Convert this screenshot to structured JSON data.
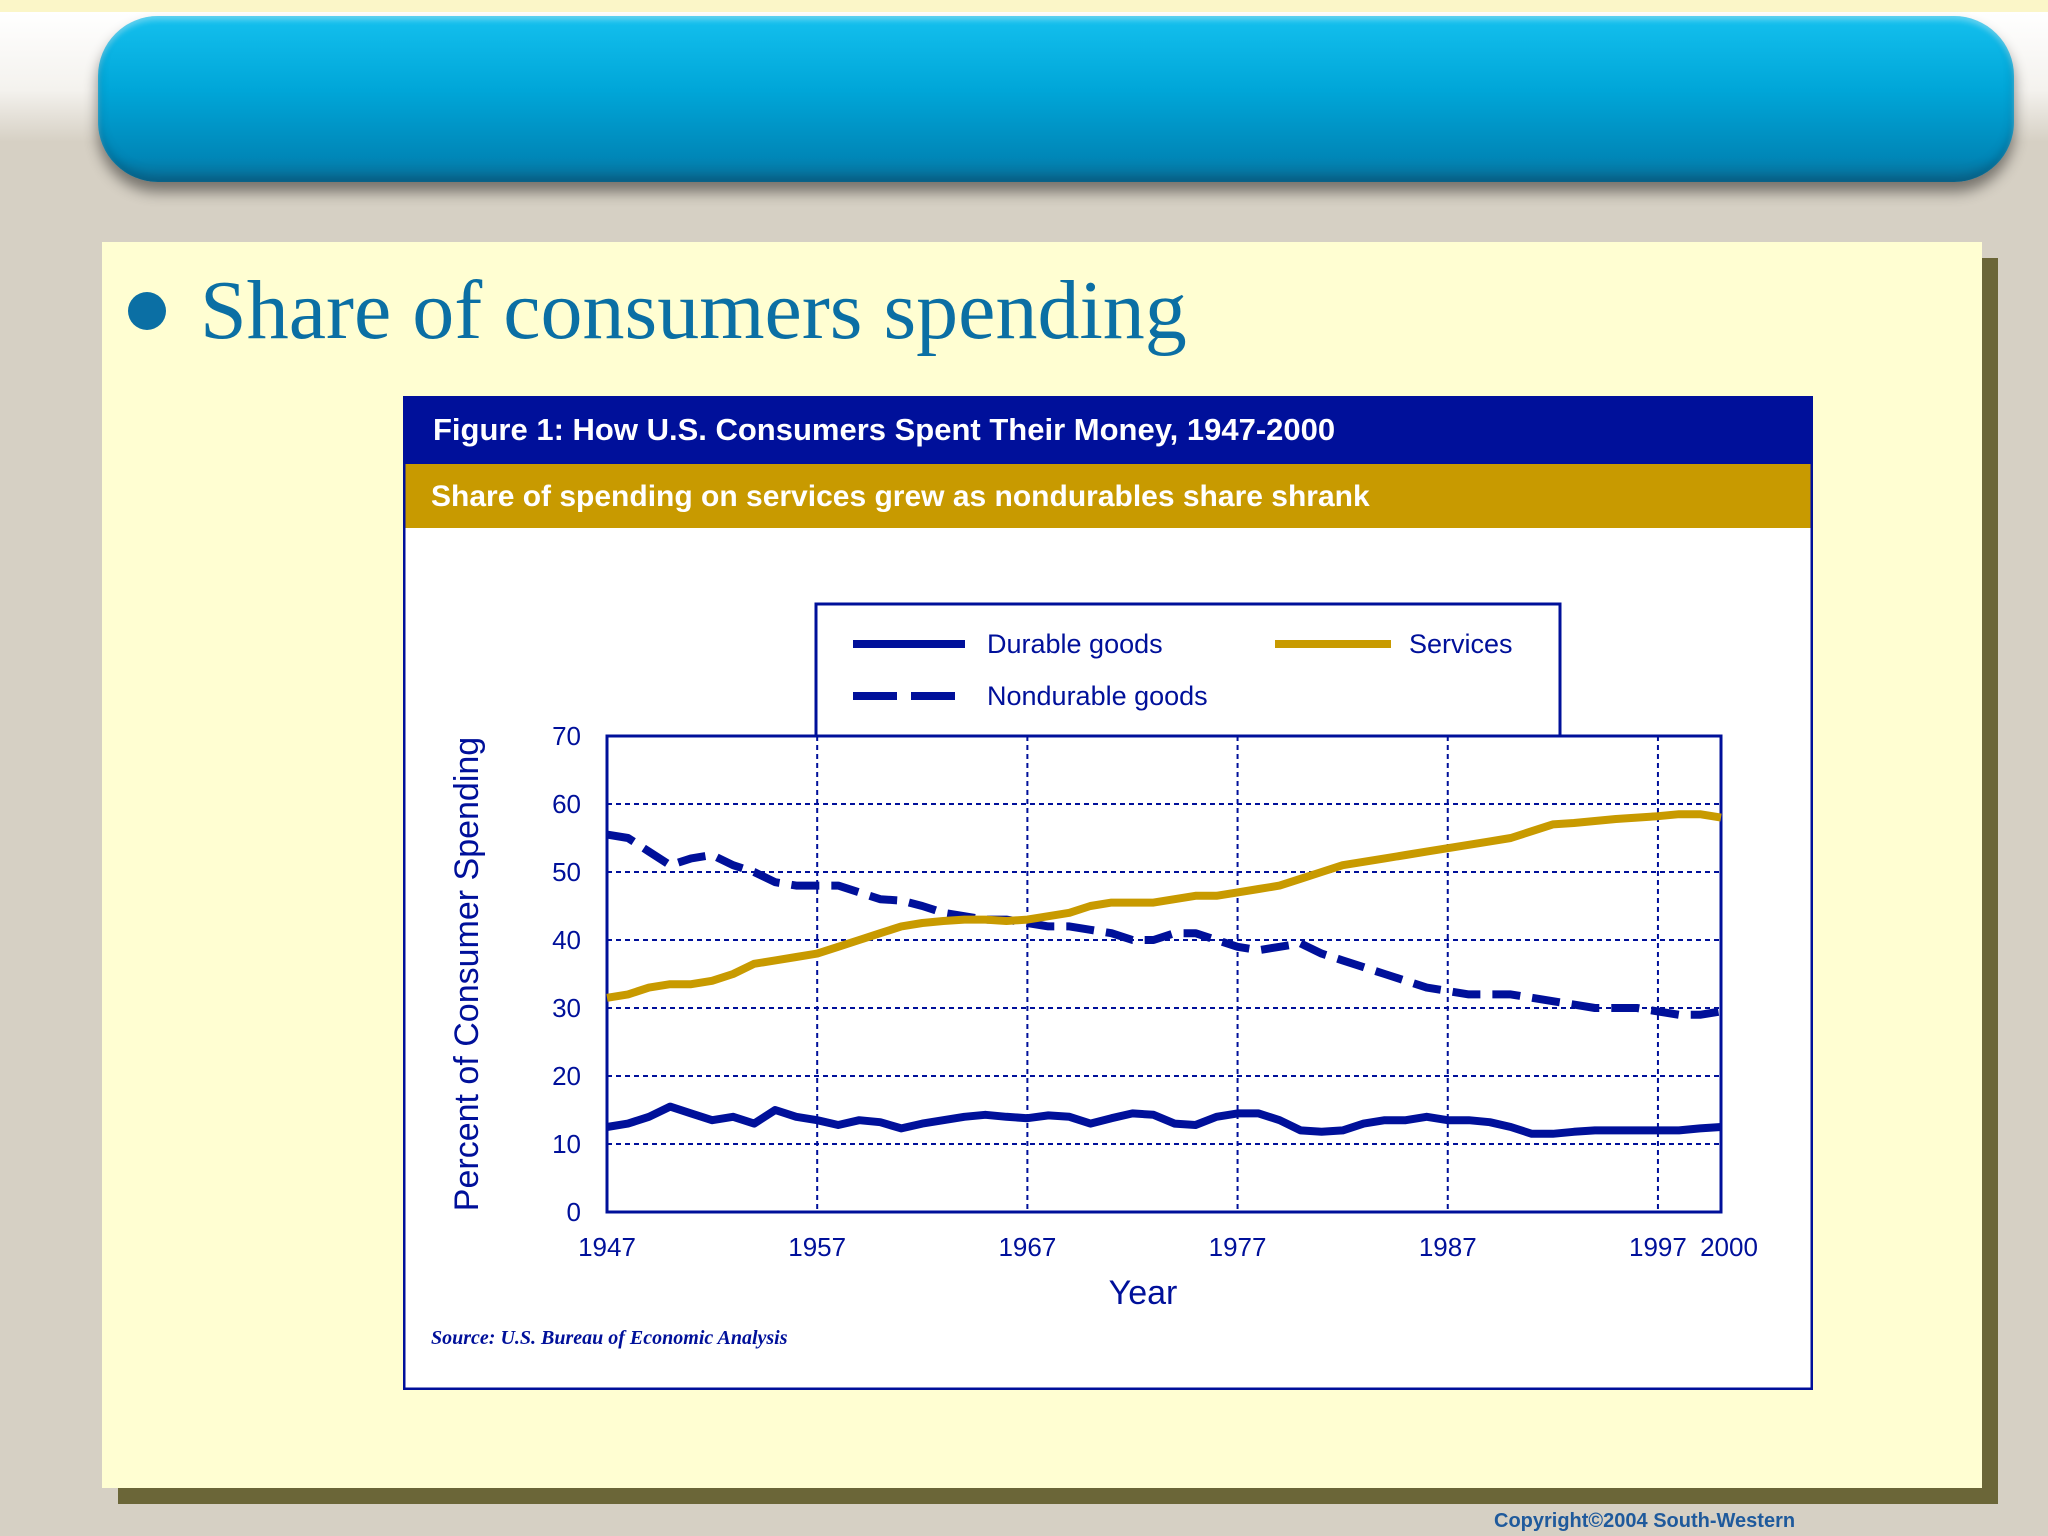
{
  "slide": {
    "title": "Share of consumers spending",
    "copyright": "Copyright©2004  South-Western"
  },
  "figure": {
    "heading": "Figure 1: How U.S. Consumers Spent Their Money, 1947-2000",
    "subheading": "Share of spending on services grew as nondurables share shrank",
    "source": "Source: U.S. Bureau of Economic Analysis"
  },
  "colors": {
    "navy": "#00109a",
    "gold": "#c89a00",
    "slide_title": "#0b6fa4"
  },
  "chart_data": {
    "type": "line",
    "xlabel": "Year",
    "ylabel": "Percent of Consumer Spending",
    "xlim": [
      1947,
      2000
    ],
    "ylim": [
      0,
      70
    ],
    "x_ticks": [
      1947,
      1957,
      1967,
      1977,
      1987,
      1997,
      2000
    ],
    "y_ticks": [
      0,
      10,
      20,
      30,
      40,
      50,
      60,
      70
    ],
    "grid": true,
    "legend_position": "top",
    "series": [
      {
        "name": "Durable goods",
        "style": "solid",
        "color": "#00109a",
        "points": [
          [
            1947,
            12.5
          ],
          [
            1948,
            13
          ],
          [
            1949,
            14
          ],
          [
            1950,
            15.5
          ],
          [
            1951,
            14.5
          ],
          [
            1952,
            13.5
          ],
          [
            1953,
            14
          ],
          [
            1954,
            13
          ],
          [
            1955,
            15
          ],
          [
            1956,
            14
          ],
          [
            1957,
            13.5
          ],
          [
            1958,
            12.8
          ],
          [
            1959,
            13.5
          ],
          [
            1960,
            13.2
          ],
          [
            1961,
            12.3
          ],
          [
            1962,
            13
          ],
          [
            1963,
            13.5
          ],
          [
            1964,
            14
          ],
          [
            1965,
            14.3
          ],
          [
            1966,
            14
          ],
          [
            1967,
            13.8
          ],
          [
            1968,
            14.2
          ],
          [
            1969,
            14
          ],
          [
            1970,
            13
          ],
          [
            1971,
            13.8
          ],
          [
            1972,
            14.5
          ],
          [
            1973,
            14.3
          ],
          [
            1974,
            13
          ],
          [
            1975,
            12.8
          ],
          [
            1976,
            14
          ],
          [
            1977,
            14.5
          ],
          [
            1978,
            14.5
          ],
          [
            1979,
            13.5
          ],
          [
            1980,
            12
          ],
          [
            1981,
            11.8
          ],
          [
            1982,
            12
          ],
          [
            1983,
            13
          ],
          [
            1984,
            13.5
          ],
          [
            1985,
            13.5
          ],
          [
            1986,
            14
          ],
          [
            1987,
            13.5
          ],
          [
            1988,
            13.5
          ],
          [
            1989,
            13.2
          ],
          [
            1990,
            12.5
          ],
          [
            1991,
            11.5
          ],
          [
            1992,
            11.5
          ],
          [
            1993,
            11.8
          ],
          [
            1994,
            12
          ],
          [
            1995,
            12
          ],
          [
            1996,
            12
          ],
          [
            1997,
            12
          ],
          [
            1998,
            12
          ],
          [
            1999,
            12.3
          ],
          [
            2000,
            12.5
          ]
        ]
      },
      {
        "name": "Nondurable goods",
        "style": "dashed",
        "color": "#00109a",
        "points": [
          [
            1947,
            55.5
          ],
          [
            1948,
            55
          ],
          [
            1949,
            53
          ],
          [
            1950,
            51
          ],
          [
            1951,
            52
          ],
          [
            1952,
            52.5
          ],
          [
            1953,
            51
          ],
          [
            1954,
            50
          ],
          [
            1955,
            48.5
          ],
          [
            1956,
            48
          ],
          [
            1957,
            48
          ],
          [
            1958,
            48
          ],
          [
            1959,
            47
          ],
          [
            1960,
            46
          ],
          [
            1961,
            45.8
          ],
          [
            1962,
            45
          ],
          [
            1963,
            44
          ],
          [
            1964,
            43.5
          ],
          [
            1965,
            43
          ],
          [
            1966,
            43
          ],
          [
            1967,
            42.5
          ],
          [
            1968,
            42
          ],
          [
            1969,
            42
          ],
          [
            1970,
            41.5
          ],
          [
            1971,
            41
          ],
          [
            1972,
            40
          ],
          [
            1973,
            40
          ],
          [
            1974,
            41
          ],
          [
            1975,
            41
          ],
          [
            1976,
            40
          ],
          [
            1977,
            39
          ],
          [
            1978,
            38.5
          ],
          [
            1979,
            39
          ],
          [
            1980,
            39.5
          ],
          [
            1981,
            38
          ],
          [
            1982,
            37
          ],
          [
            1983,
            36
          ],
          [
            1984,
            35
          ],
          [
            1985,
            34
          ],
          [
            1986,
            33
          ],
          [
            1987,
            32.5
          ],
          [
            1988,
            32
          ],
          [
            1989,
            32
          ],
          [
            1990,
            32
          ],
          [
            1991,
            31.5
          ],
          [
            1992,
            31
          ],
          [
            1993,
            30.5
          ],
          [
            1994,
            30
          ],
          [
            1995,
            30
          ],
          [
            1996,
            30
          ],
          [
            1997,
            29.5
          ],
          [
            1998,
            29
          ],
          [
            1999,
            29
          ],
          [
            2000,
            29.5
          ]
        ]
      },
      {
        "name": "Services",
        "style": "solid",
        "color": "#c89a00",
        "points": [
          [
            1947,
            31.5
          ],
          [
            1948,
            32
          ],
          [
            1949,
            33
          ],
          [
            1950,
            33.5
          ],
          [
            1951,
            33.5
          ],
          [
            1952,
            34
          ],
          [
            1953,
            35
          ],
          [
            1954,
            36.5
          ],
          [
            1955,
            37
          ],
          [
            1956,
            37.5
          ],
          [
            1957,
            38
          ],
          [
            1958,
            39
          ],
          [
            1959,
            40
          ],
          [
            1960,
            41
          ],
          [
            1961,
            42
          ],
          [
            1962,
            42.5
          ],
          [
            1963,
            42.8
          ],
          [
            1964,
            43
          ],
          [
            1965,
            43
          ],
          [
            1966,
            42.8
          ],
          [
            1967,
            43
          ],
          [
            1968,
            43.5
          ],
          [
            1969,
            44
          ],
          [
            1970,
            45
          ],
          [
            1971,
            45.5
          ],
          [
            1972,
            45.5
          ],
          [
            1973,
            45.5
          ],
          [
            1974,
            46
          ],
          [
            1975,
            46.5
          ],
          [
            1976,
            46.5
          ],
          [
            1977,
            47
          ],
          [
            1978,
            47.5
          ],
          [
            1979,
            48
          ],
          [
            1980,
            49
          ],
          [
            1981,
            50
          ],
          [
            1982,
            51
          ],
          [
            1983,
            51.5
          ],
          [
            1984,
            52
          ],
          [
            1985,
            52.5
          ],
          [
            1986,
            53
          ],
          [
            1987,
            53.5
          ],
          [
            1988,
            54
          ],
          [
            1989,
            54.5
          ],
          [
            1990,
            55
          ],
          [
            1991,
            56
          ],
          [
            1992,
            57
          ],
          [
            1993,
            57.2
          ],
          [
            1994,
            57.5
          ],
          [
            1995,
            57.8
          ],
          [
            1996,
            58
          ],
          [
            1997,
            58.2
          ],
          [
            1998,
            58.5
          ],
          [
            1999,
            58.5
          ],
          [
            2000,
            58
          ]
        ]
      }
    ]
  }
}
